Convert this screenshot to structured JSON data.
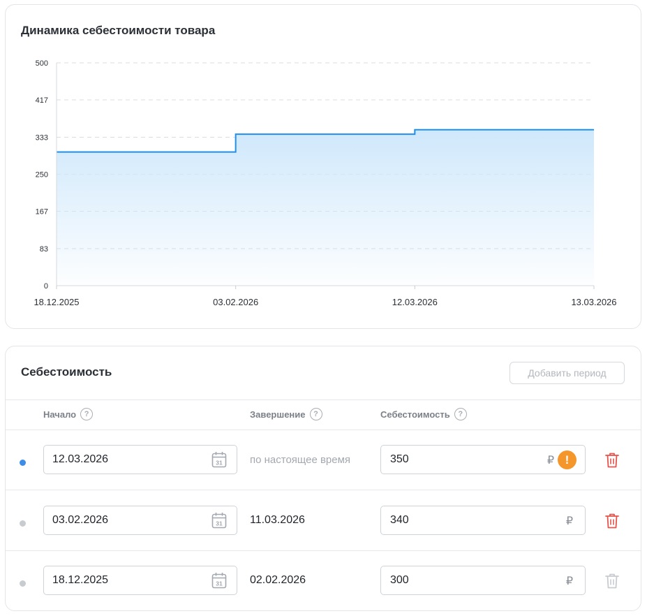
{
  "chart_section": {
    "title": "Динамика себестоимости товара"
  },
  "chart_data": {
    "type": "area",
    "step": true,
    "title": "Динамика себестоимости товара",
    "x": [
      "18.12.2025",
      "03.02.2026",
      "12.03.2026",
      "13.03.2026"
    ],
    "values": [
      300,
      340,
      350,
      350
    ],
    "y_ticks": [
      "500",
      "417",
      "333",
      "250",
      "167",
      "83",
      "0"
    ],
    "ylim": [
      0,
      500
    ],
    "grid": true,
    "line_color": "#1e8ff0",
    "fill_color": "#cfe8fb"
  },
  "cost_section": {
    "title": "Себестоимость",
    "add_button_label": "Добавить период",
    "columns": {
      "start": "Начало",
      "end": "Завершение",
      "cost": "Себестоимость"
    },
    "rows": [
      {
        "start": "12.03.2026",
        "end": "по настоящее время",
        "cost": "350",
        "currency": "₽",
        "warning": "!",
        "active": true
      },
      {
        "start": "03.02.2026",
        "end": "11.03.2026",
        "cost": "340",
        "currency": "₽",
        "active": false
      },
      {
        "start": "18.12.2025",
        "end": "02.02.2026",
        "cost": "300",
        "currency": "₽",
        "active": false
      }
    ],
    "help_symbol": "?",
    "colors": {
      "active_dot": "#3b8de8",
      "inactive_dot": "#c8cbd0",
      "delete_active": "#e5534b",
      "delete_disabled": "#c8cbd0",
      "warning": "#f5962a"
    }
  }
}
